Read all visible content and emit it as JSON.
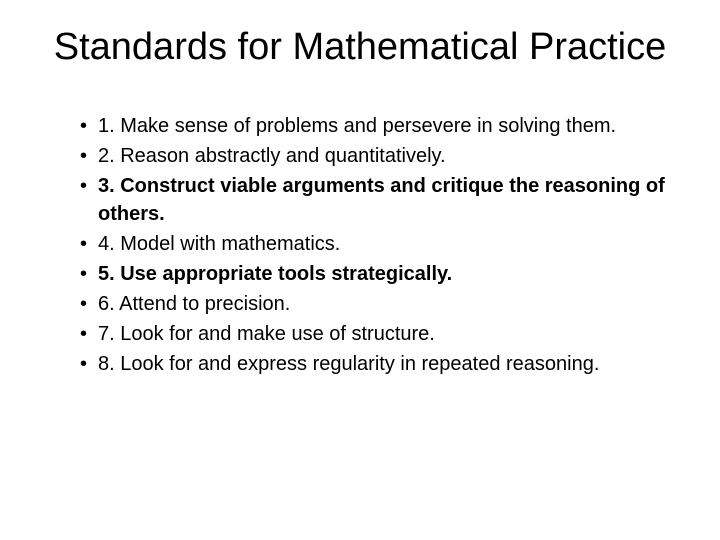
{
  "title": "Standards for Mathematical Practice",
  "items": [
    {
      "text": "1. Make sense of problems and persevere in solving them.",
      "bold": false
    },
    {
      "text": "2. Reason abstractly and quantitatively.",
      "bold": false
    },
    {
      "text": "3. Construct viable arguments and critique the reasoning of others.",
      "bold": true
    },
    {
      "text": "4. Model with mathematics.",
      "bold": false
    },
    {
      "text": "5. Use appropriate tools strategically.",
      "bold": true
    },
    {
      "text": "6. Attend to precision.",
      "bold": false
    },
    {
      "text": "7. Look for and make use of structure.",
      "bold": false
    },
    {
      "text": "8. Look for and express regularity in repeated reasoning.",
      "bold": false
    }
  ],
  "colors": {
    "background": "#ffffff",
    "text": "#000000"
  },
  "fonts": {
    "title_size": 38,
    "body_size": 20,
    "family": "Arial"
  }
}
